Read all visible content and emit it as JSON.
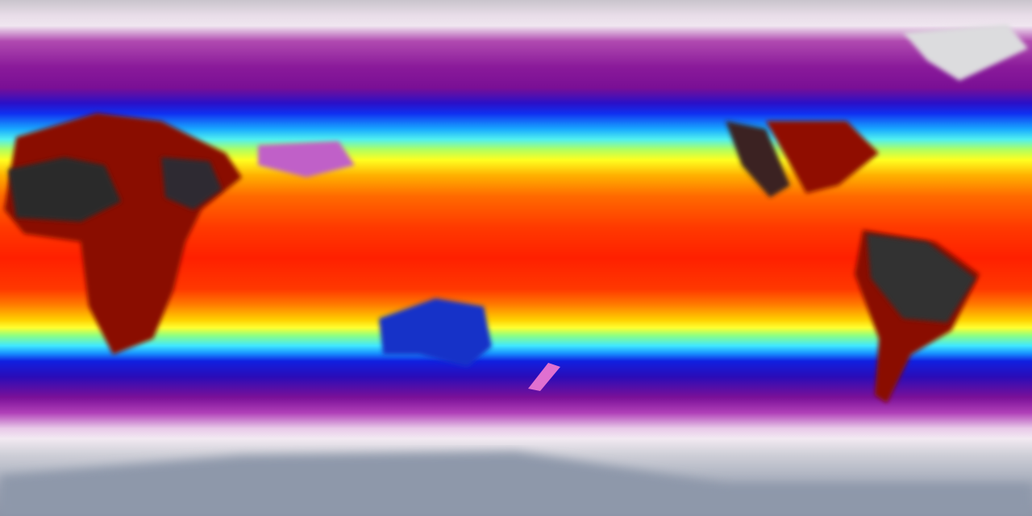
{
  "map": {
    "projection": "equirectangular",
    "variable_colors": [
      "#8c94a6",
      "#f0e6f0",
      "#8a1a9a",
      "#1030f0",
      "#50f0f0",
      "#ffff20",
      "#ff6a00",
      "#ff2000",
      "#2a2a2a"
    ]
  }
}
